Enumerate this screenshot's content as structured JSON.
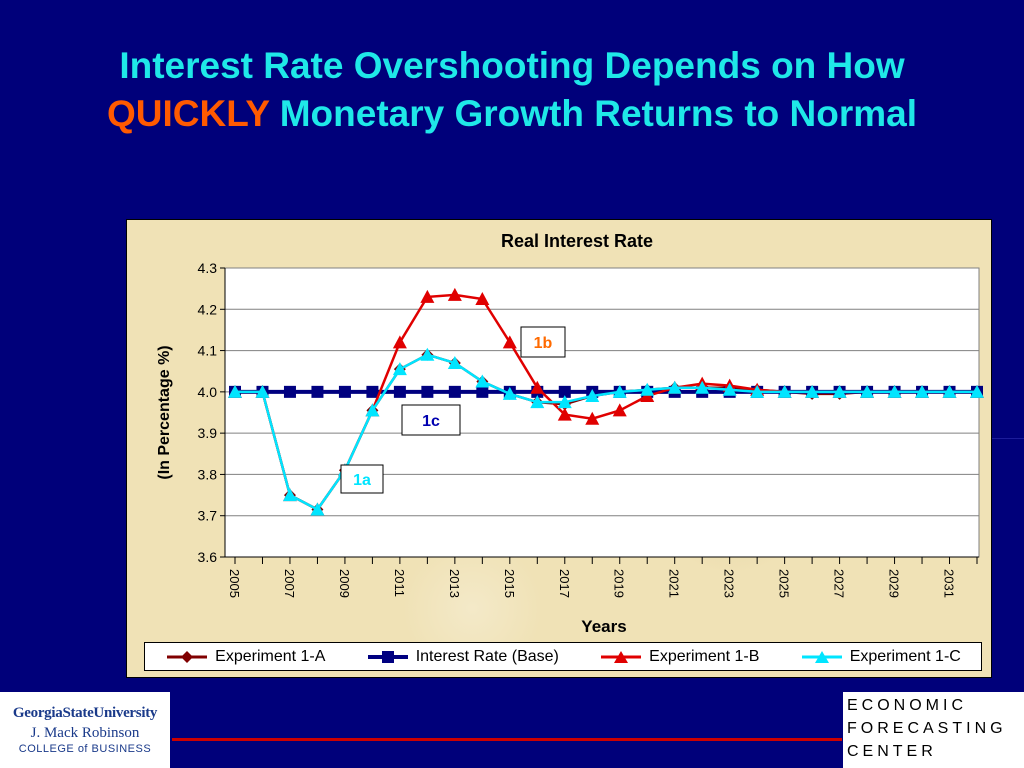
{
  "slide": {
    "title_line1": "Interest Rate Overshooting Depends on How",
    "title_highlight": "QUICKLY",
    "title_line2": " Monetary Growth Returns to Normal"
  },
  "chart_data": {
    "type": "line",
    "title": "Real Interest Rate",
    "xlabel": "Years",
    "ylabel": "(In Percentage %)",
    "ylim": [
      3.6,
      4.3
    ],
    "yticks": [
      "3.6",
      "3.7",
      "3.8",
      "3.9",
      "4.0",
      "4.1",
      "4.2",
      "4.3"
    ],
    "xlim": [
      2005,
      2032
    ],
    "x": [
      2005,
      2006,
      2007,
      2008,
      2009,
      2010,
      2011,
      2012,
      2013,
      2014,
      2015,
      2016,
      2017,
      2018,
      2019,
      2020,
      2021,
      2022,
      2023,
      2024,
      2025,
      2026,
      2027,
      2028,
      2029,
      2030,
      2031,
      2032
    ],
    "xtick_labels": [
      "2005",
      "2007",
      "2009",
      "2011",
      "2013",
      "2015",
      "2017",
      "2019",
      "2021",
      "2023",
      "2025",
      "2027",
      "2029",
      "2031"
    ],
    "grid": "horizontal",
    "legend_position": "bottom",
    "series": [
      {
        "name": "Experiment 1-A",
        "color": "#800000",
        "marker": "diamond",
        "values": [
          4.0,
          4.0,
          3.75,
          3.715,
          3.81,
          3.955,
          4.055,
          4.09,
          4.07,
          4.025,
          3.995,
          3.975,
          3.97,
          3.99,
          4.0,
          4.005,
          4.01,
          4.01,
          4.01,
          4.005,
          4.0,
          3.995,
          3.995,
          4.0,
          4.0,
          4.0,
          4.0,
          4.0
        ]
      },
      {
        "name": "Interest Rate (Base)",
        "color": "#000080",
        "marker": "square",
        "values": [
          4.0,
          4.0,
          4.0,
          4.0,
          4.0,
          4.0,
          4.0,
          4.0,
          4.0,
          4.0,
          4.0,
          4.0,
          4.0,
          4.0,
          4.0,
          4.0,
          4.0,
          4.0,
          4.0,
          4.0,
          4.0,
          4.0,
          4.0,
          4.0,
          4.0,
          4.0,
          4.0,
          4.0
        ]
      },
      {
        "name": "Experiment 1-B",
        "color": "#e00000",
        "marker": "triangle",
        "values": [
          4.0,
          4.0,
          3.75,
          3.715,
          3.81,
          3.955,
          4.12,
          4.23,
          4.235,
          4.225,
          4.12,
          4.01,
          3.945,
          3.935,
          3.955,
          3.99,
          4.01,
          4.02,
          4.015,
          4.005,
          4.0,
          4.0,
          4.0,
          4.0,
          4.0,
          4.0,
          4.0,
          4.0
        ]
      },
      {
        "name": "Experiment 1-C",
        "color": "#00e5ff",
        "marker": "triangle",
        "values": [
          4.0,
          4.0,
          3.75,
          3.715,
          3.81,
          3.955,
          4.055,
          4.09,
          4.07,
          4.025,
          3.995,
          3.975,
          3.975,
          3.99,
          4.0,
          4.005,
          4.01,
          4.01,
          4.005,
          4.0,
          4.0,
          4.0,
          4.0,
          4.0,
          4.0,
          4.0,
          4.0,
          4.0
        ]
      }
    ],
    "annotations": [
      {
        "label": "1a",
        "color": "#00e5ff"
      },
      {
        "label": "1b",
        "color": "#ff6a00"
      },
      {
        "label": "1c",
        "color": "#0000b0"
      }
    ]
  },
  "logos": {
    "gsu_line1": "GeorgiaStateUniversity",
    "gsu_line2": "J. Mack Robinson",
    "gsu_line3": "COLLEGE of BUSINESS",
    "efc_line1": "ECONOMIC",
    "efc_line2": "FORECASTING",
    "efc_line3": "CENTER"
  }
}
